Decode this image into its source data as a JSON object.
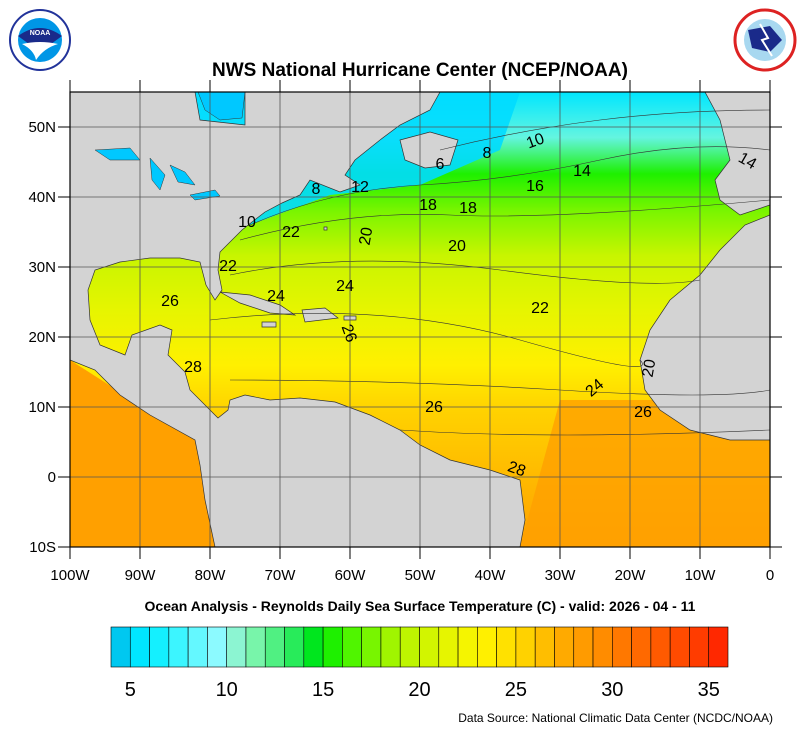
{
  "title": "NWS National Hurricane Center (NCEP/NOAA)",
  "subtitle": "Ocean Analysis - Reynolds Daily Sea Surface Temperature (C) - valid: 2026 - 04 - 11",
  "source": "Data Source: National Climatic Data Center (NCDC/NOAA)",
  "logos": {
    "left": "NOAA",
    "right": "NATIONAL WEATHER SERVICE"
  },
  "map": {
    "lon_range": [
      -100,
      0
    ],
    "lat_range": [
      -10,
      55
    ],
    "lon_ticks": [
      "100W",
      "90W",
      "80W",
      "70W",
      "60W",
      "50W",
      "40W",
      "30W",
      "20W",
      "10W",
      "0"
    ],
    "lat_ticks": [
      "50N",
      "40N",
      "30N",
      "20N",
      "10N",
      "0",
      "10S"
    ],
    "land_color": "#d3d3d3",
    "grid": true
  },
  "contour_labels": [
    "10",
    "8",
    "6",
    "14",
    "14",
    "16",
    "8",
    "12",
    "18",
    "18",
    "10",
    "22",
    "20",
    "20",
    "22",
    "24",
    "24",
    "26",
    "22",
    "26",
    "28",
    "20",
    "24",
    "26",
    "26",
    "28"
  ],
  "colorbar": {
    "min": 4,
    "max": 36,
    "ticks": [
      "5",
      "10",
      "15",
      "20",
      "25",
      "30",
      "35"
    ],
    "colors": [
      "#00c8f0",
      "#00e6ff",
      "#14f0ff",
      "#3cf5ff",
      "#64f8ff",
      "#8cfaff",
      "#8cf5d2",
      "#78f5aa",
      "#50f082",
      "#28eb5a",
      "#00e61e",
      "#1ef000",
      "#50f500",
      "#78f500",
      "#a0f500",
      "#bef500",
      "#d2f500",
      "#e6f500",
      "#f5f500",
      "#fff000",
      "#ffe100",
      "#ffd200",
      "#ffbe00",
      "#ffaa00",
      "#ff9b00",
      "#ff8c00",
      "#ff7800",
      "#ff6900",
      "#ff5a00",
      "#ff4b00",
      "#ff3c00",
      "#ff2800"
    ]
  }
}
